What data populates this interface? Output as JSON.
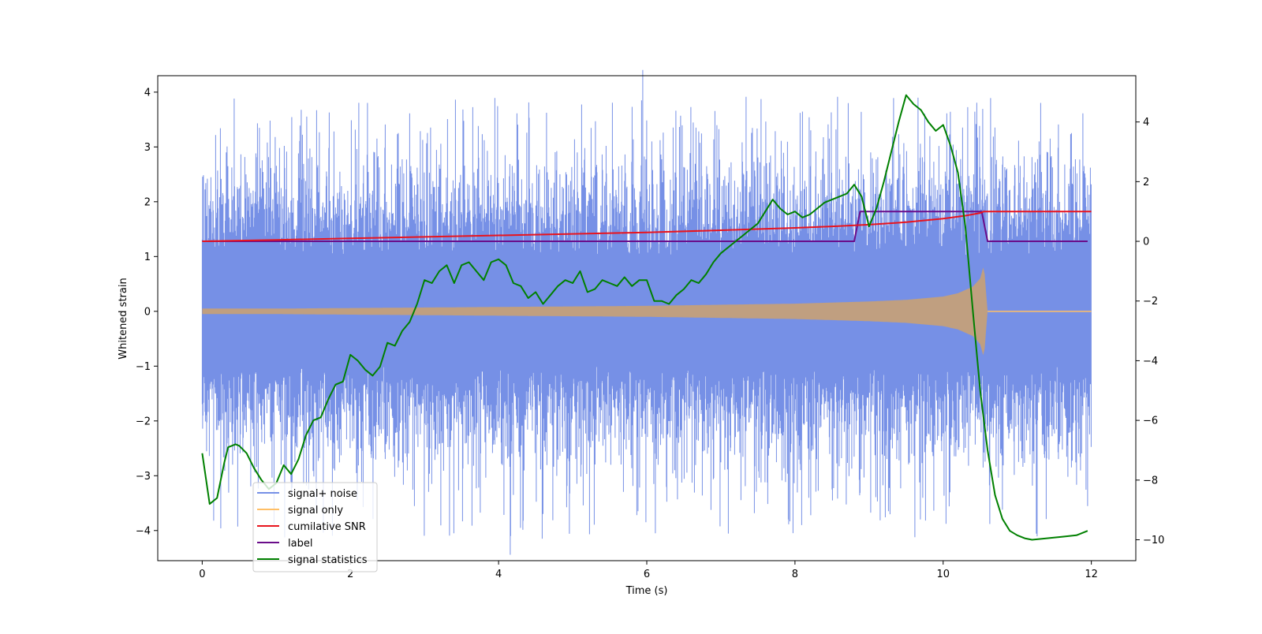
{
  "chart_data": {
    "type": "line",
    "xlabel": "Time (s)",
    "ylabel": "Whitened strain",
    "xlim": [
      -0.6,
      12.6
    ],
    "ylim_left": [
      -4.55,
      4.3
    ],
    "ylim_right": [
      -10.7,
      5.55
    ],
    "x_ticks": [
      0,
      2,
      4,
      6,
      8,
      10,
      12
    ],
    "y_ticks_left": [
      -4,
      -3,
      -2,
      -1,
      0,
      1,
      2,
      3,
      4
    ],
    "y_ticks_right": [
      -10,
      -8,
      -6,
      -4,
      -2,
      0,
      2,
      4
    ],
    "x_tick_labels": [
      "0",
      "2",
      "4",
      "6",
      "8",
      "10",
      "12"
    ],
    "y_tick_labels_left": [
      "−4",
      "−3",
      "−2",
      "−1",
      "0",
      "1",
      "2",
      "3",
      "4"
    ],
    "y_tick_labels_right": [
      "−10",
      "−8",
      "−6",
      "−4",
      "−2",
      "0",
      "2",
      "4"
    ],
    "legend_position": "lower-left",
    "grid": false,
    "legend": [
      {
        "label": "signal+ noise",
        "color": "#7690e6"
      },
      {
        "label": "signal only",
        "color": "#ffbf66"
      },
      {
        "label": "cumilative SNR",
        "color": "#e8141e"
      },
      {
        "label": "label",
        "color": "#6a0d8a"
      },
      {
        "label": "signal statistics",
        "color": "#008000"
      }
    ],
    "series": [
      {
        "name": "signal+ noise",
        "axis": "left",
        "color": "#7690e6",
        "x_range": [
          0,
          12
        ],
        "typical_band": [
          -1.5,
          1.5
        ],
        "peak_max": 3.92,
        "peak_min": -4.18
      },
      {
        "name": "signal only",
        "axis": "left",
        "color": "#ffbf66",
        "envelope": {
          "x": [
            0,
            1,
            2,
            3,
            4,
            5,
            6,
            7,
            8,
            9,
            9.5,
            10,
            10.2,
            10.4,
            10.5,
            10.55,
            10.6,
            12
          ],
          "amplitude": [
            0.05,
            0.05,
            0.06,
            0.07,
            0.08,
            0.09,
            0.1,
            0.12,
            0.14,
            0.18,
            0.21,
            0.27,
            0.33,
            0.45,
            0.6,
            0.85,
            0.0,
            0.0
          ]
        }
      },
      {
        "name": "cumilative SNR",
        "axis": "right",
        "color": "#e8141e",
        "x": [
          0,
          1,
          2,
          3,
          4,
          5,
          6,
          7,
          8,
          8.5,
          9,
          9.5,
          10,
          10.3,
          10.5,
          10.55,
          12
        ],
        "y": [
          0.0,
          0.05,
          0.1,
          0.15,
          0.2,
          0.25,
          0.3,
          0.37,
          0.45,
          0.5,
          0.56,
          0.64,
          0.76,
          0.86,
          0.95,
          1.0,
          1.0
        ]
      },
      {
        "name": "label",
        "axis": "right",
        "color": "#6a0d8a",
        "x": [
          0,
          8.8,
          8.88,
          10.52,
          10.6,
          11.95
        ],
        "y": [
          0,
          0,
          1,
          1,
          0,
          0
        ]
      },
      {
        "name": "signal statistics",
        "axis": "right",
        "color": "#008000",
        "x": [
          0,
          0.1,
          0.15,
          0.2,
          0.3,
          0.35,
          0.45,
          0.5,
          0.6,
          0.7,
          0.8,
          0.9,
          1.0,
          1.1,
          1.2,
          1.3,
          1.4,
          1.5,
          1.6,
          1.7,
          1.8,
          1.9,
          2.0,
          2.1,
          2.2,
          2.3,
          2.4,
          2.5,
          2.6,
          2.7,
          2.8,
          2.9,
          3.0,
          3.1,
          3.2,
          3.3,
          3.4,
          3.5,
          3.6,
          3.7,
          3.8,
          3.9,
          4.0,
          4.1,
          4.2,
          4.3,
          4.4,
          4.5,
          4.6,
          4.7,
          4.8,
          4.9,
          5.0,
          5.1,
          5.2,
          5.3,
          5.4,
          5.5,
          5.6,
          5.7,
          5.8,
          5.9,
          6.0,
          6.1,
          6.2,
          6.3,
          6.4,
          6.5,
          6.6,
          6.7,
          6.8,
          6.9,
          7.0,
          7.1,
          7.2,
          7.3,
          7.4,
          7.5,
          7.6,
          7.7,
          7.8,
          7.9,
          8.0,
          8.1,
          8.2,
          8.3,
          8.4,
          8.5,
          8.6,
          8.7,
          8.8,
          8.9,
          9.0,
          9.1,
          9.2,
          9.3,
          9.4,
          9.5,
          9.6,
          9.7,
          9.8,
          9.9,
          10.0,
          10.1,
          10.2,
          10.3,
          10.4,
          10.5,
          10.6,
          10.7,
          10.8,
          10.9,
          11.0,
          11.1,
          11.2,
          11.4,
          11.6,
          11.8,
          11.95
        ],
        "y": [
          -7.1,
          -8.8,
          -8.7,
          -8.6,
          -7.4,
          -6.9,
          -6.8,
          -6.85,
          -7.1,
          -7.6,
          -8.0,
          -8.3,
          -8.1,
          -7.5,
          -7.8,
          -7.3,
          -6.5,
          -6.0,
          -5.9,
          -5.3,
          -4.8,
          -4.7,
          -3.8,
          -4.0,
          -4.3,
          -4.5,
          -4.2,
          -3.4,
          -3.5,
          -3.0,
          -2.7,
          -2.1,
          -1.3,
          -1.4,
          -1.0,
          -0.8,
          -1.4,
          -0.8,
          -0.7,
          -1.0,
          -1.3,
          -0.7,
          -0.6,
          -0.8,
          -1.4,
          -1.5,
          -1.9,
          -1.7,
          -2.1,
          -1.8,
          -1.5,
          -1.3,
          -1.4,
          -1.0,
          -1.7,
          -1.6,
          -1.3,
          -1.4,
          -1.5,
          -1.2,
          -1.5,
          -1.3,
          -1.3,
          -2.0,
          -2.0,
          -2.1,
          -1.8,
          -1.6,
          -1.3,
          -1.4,
          -1.1,
          -0.7,
          -0.4,
          -0.2,
          0.0,
          0.2,
          0.4,
          0.6,
          1.0,
          1.4,
          1.1,
          0.9,
          1.0,
          0.8,
          0.9,
          1.1,
          1.3,
          1.4,
          1.5,
          1.6,
          1.9,
          1.5,
          0.5,
          1.1,
          2.0,
          3.0,
          4.0,
          4.9,
          4.6,
          4.4,
          4.0,
          3.7,
          3.9,
          3.2,
          2.3,
          0.5,
          -2.3,
          -5.0,
          -7.0,
          -8.5,
          -9.3,
          -9.7,
          -9.85,
          -9.95,
          -10.0,
          -9.95,
          -9.9,
          -9.85,
          -9.7
        ]
      }
    ]
  }
}
